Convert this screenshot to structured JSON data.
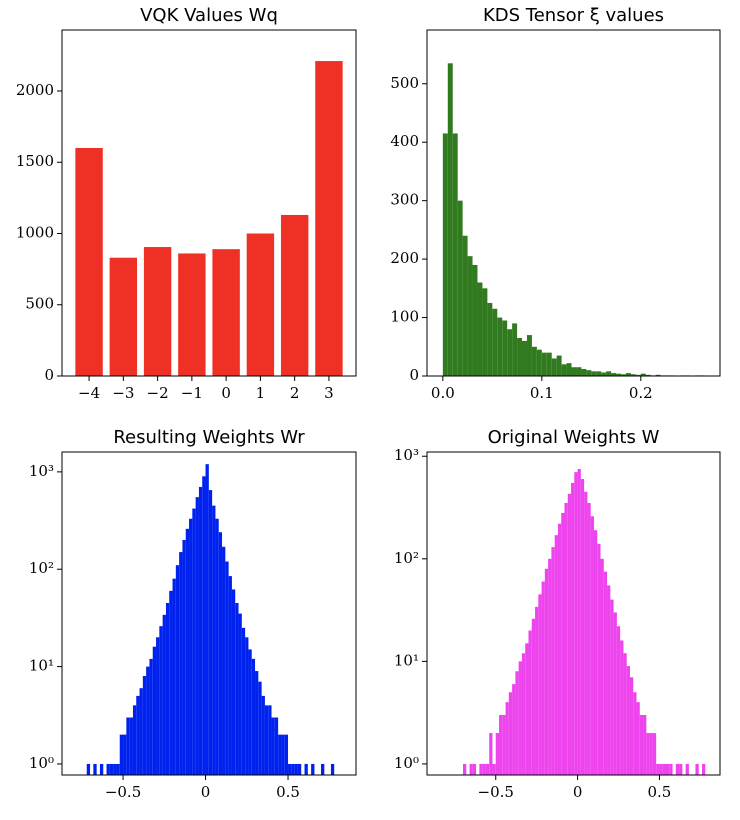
{
  "chart_data": [
    {
      "type": "bar",
      "title": "VQK Values Wq",
      "color": "#ee3124",
      "x": [
        -4,
        -3,
        -2,
        -1,
        0,
        1,
        2,
        3
      ],
      "values": [
        1600,
        830,
        905,
        860,
        890,
        1000,
        1130,
        2210
      ],
      "xlim": [
        -4.79,
        3.79
      ],
      "ylim": [
        0,
        2428
      ],
      "xticks": [
        {
          "value": -4,
          "label": "−4"
        },
        {
          "value": -3,
          "label": "−3"
        },
        {
          "value": -2,
          "label": "−2"
        },
        {
          "value": -1,
          "label": "−1"
        },
        0,
        1,
        2,
        3
      ],
      "yticks": [
        0,
        500,
        1000,
        1500,
        2000
      ]
    },
    {
      "type": "histogram",
      "title": "KDS Tensor ξ values",
      "color": "#317a1f",
      "bins": [
        0,
        0.005,
        0.01,
        0.015,
        0.02,
        0.025,
        0.03,
        0.035,
        0.04,
        0.045,
        0.05,
        0.055,
        0.06,
        0.065,
        0.07,
        0.075,
        0.08,
        0.085,
        0.09,
        0.095,
        0.1,
        0.105,
        0.11,
        0.115,
        0.12,
        0.125,
        0.13,
        0.135,
        0.14,
        0.145,
        0.15,
        0.155,
        0.16,
        0.165,
        0.17,
        0.175,
        0.18,
        0.185,
        0.19,
        0.195,
        0.2,
        0.205,
        0.21,
        0.215,
        0.22,
        0.225,
        0.23,
        0.235,
        0.24,
        0.245,
        0.25,
        0.255,
        0.26,
        0.265
      ],
      "values": [
        415,
        535,
        415,
        300,
        240,
        205,
        190,
        160,
        150,
        125,
        115,
        100,
        95,
        80,
        90,
        65,
        60,
        70,
        50,
        45,
        40,
        40,
        30,
        35,
        20,
        22,
        15,
        15,
        12,
        10,
        8,
        8,
        6,
        8,
        5,
        4,
        3,
        5,
        3,
        2,
        4,
        2,
        1,
        2,
        1,
        1,
        1,
        0,
        1,
        1,
        0,
        1,
        1
      ],
      "xlim": [
        -0.016,
        0.28
      ],
      "ylim": [
        0,
        592
      ],
      "xticks": [
        {
          "value": 0,
          "label": "0.0"
        },
        0.1,
        0.2
      ],
      "yticks": [
        0,
        100,
        200,
        300,
        400,
        500
      ]
    },
    {
      "type": "histogram",
      "title": "Resulting Weights Wr",
      "color": "#0022ee",
      "log_y": true,
      "bins": [
        -0.78,
        -0.76,
        -0.74,
        -0.72,
        -0.7,
        -0.68,
        -0.66,
        -0.64,
        -0.62,
        -0.6,
        -0.58,
        -0.56,
        -0.54,
        -0.52,
        -0.5,
        -0.48,
        -0.46,
        -0.44,
        -0.42,
        -0.4,
        -0.38,
        -0.36,
        -0.34,
        -0.32,
        -0.3,
        -0.28,
        -0.26,
        -0.24,
        -0.22,
        -0.2,
        -0.18,
        -0.16,
        -0.14,
        -0.12,
        -0.1,
        -0.08,
        -0.06,
        -0.04,
        -0.02,
        0,
        0.02,
        0.04,
        0.06,
        0.08,
        0.1,
        0.12,
        0.14,
        0.16,
        0.18,
        0.2,
        0.22,
        0.24,
        0.26,
        0.28,
        0.3,
        0.32,
        0.34,
        0.36,
        0.38,
        0.4,
        0.42,
        0.44,
        0.46,
        0.48,
        0.5,
        0.52,
        0.54,
        0.56,
        0.58,
        0.6,
        0.62,
        0.64,
        0.66,
        0.68,
        0.7,
        0.72,
        0.74,
        0.76,
        0.78
      ],
      "values": [
        0,
        0,
        0,
        1,
        0,
        1,
        0,
        1,
        0,
        1,
        1,
        1,
        1,
        2,
        2,
        3,
        3,
        4,
        5,
        6,
        8,
        10,
        12,
        16,
        20,
        26,
        34,
        45,
        60,
        80,
        110,
        150,
        200,
        260,
        330,
        420,
        550,
        700,
        900,
        1200,
        650,
        450,
        330,
        240,
        170,
        120,
        85,
        62,
        45,
        35,
        25,
        20,
        15,
        12,
        9,
        7,
        5,
        4,
        4,
        3,
        3,
        2,
        2,
        2,
        1,
        1,
        1,
        1,
        0,
        1,
        0,
        1,
        0,
        0,
        1,
        0,
        0,
        1
      ],
      "xlim": [
        -0.87,
        0.912
      ],
      "ylim": [
        0.77,
        1600
      ],
      "xticks": [
        {
          "value": -0.5,
          "label": "−0.5"
        },
        0.0,
        0.5
      ],
      "yticks": [
        {
          "value": 1,
          "label": "10⁰"
        },
        {
          "value": 10,
          "label": "10¹"
        },
        {
          "value": 100,
          "label": "10²"
        },
        {
          "value": 1000,
          "label": "10³"
        }
      ]
    },
    {
      "type": "histogram",
      "title": "Original Weights W",
      "color": "#ee44ee",
      "log_y": true,
      "bins": [
        -0.78,
        -0.76,
        -0.74,
        -0.72,
        -0.7,
        -0.68,
        -0.66,
        -0.64,
        -0.62,
        -0.6,
        -0.58,
        -0.56,
        -0.54,
        -0.52,
        -0.5,
        -0.48,
        -0.46,
        -0.44,
        -0.42,
        -0.4,
        -0.38,
        -0.36,
        -0.34,
        -0.32,
        -0.3,
        -0.28,
        -0.26,
        -0.24,
        -0.22,
        -0.2,
        -0.18,
        -0.16,
        -0.14,
        -0.12,
        -0.1,
        -0.08,
        -0.06,
        -0.04,
        -0.02,
        0,
        0.02,
        0.04,
        0.06,
        0.08,
        0.1,
        0.12,
        0.14,
        0.16,
        0.18,
        0.2,
        0.22,
        0.24,
        0.26,
        0.28,
        0.3,
        0.32,
        0.34,
        0.36,
        0.38,
        0.4,
        0.42,
        0.44,
        0.46,
        0.48,
        0.5,
        0.52,
        0.54,
        0.56,
        0.58,
        0.6,
        0.62,
        0.64,
        0.66,
        0.68,
        0.7,
        0.72,
        0.74,
        0.76,
        0.78
      ],
      "values": [
        0,
        0,
        0,
        0,
        1,
        0,
        1,
        1,
        0,
        1,
        1,
        1,
        2,
        1,
        2,
        3,
        3,
        4,
        5,
        6,
        8,
        10,
        12,
        15,
        20,
        26,
        34,
        45,
        60,
        80,
        100,
        130,
        170,
        220,
        280,
        350,
        430,
        550,
        700,
        750,
        600,
        450,
        350,
        260,
        190,
        140,
        100,
        75,
        55,
        40,
        30,
        22,
        16,
        12,
        9,
        7,
        5,
        4,
        3,
        3,
        2,
        2,
        2,
        1,
        1,
        1,
        1,
        1,
        0,
        1,
        1,
        0,
        1,
        0,
        0,
        1,
        0,
        1
      ],
      "xlim": [
        -0.92,
        0.87
      ],
      "ylim": [
        0.78,
        1100
      ],
      "xticks": [
        {
          "value": -0.5,
          "label": "−0.5"
        },
        0.0,
        0.5
      ],
      "yticks": [
        {
          "value": 1,
          "label": "10⁰"
        },
        {
          "value": 10,
          "label": "10¹"
        },
        {
          "value": 100,
          "label": "10²"
        },
        {
          "value": 1000,
          "label": "10³"
        }
      ]
    }
  ]
}
